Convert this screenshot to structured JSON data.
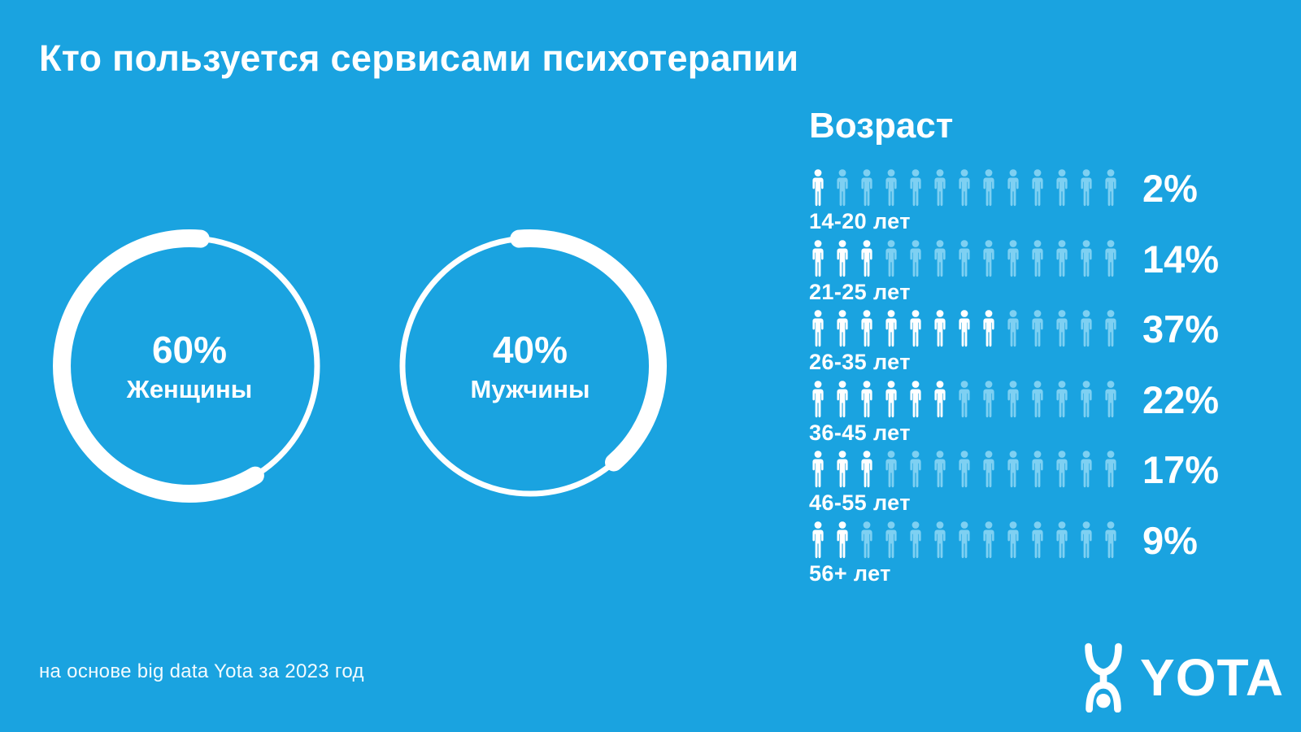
{
  "page": {
    "title": "Кто пользуется сервисами психотерапии",
    "footnote": "на основе big data Yota за 2023 год",
    "brand": "YOTA"
  },
  "colors": {
    "background": "#1aa3e0",
    "icon_dim": "#7ed0f2",
    "foreground": "#ffffff"
  },
  "icons": {
    "person": "person-pictogram-icon",
    "logo": "yota-figure-icon"
  },
  "gender": {
    "items": [
      {
        "value": "60%",
        "label": "Женщины",
        "percent": 60
      },
      {
        "value": "40%",
        "label": "Мужчины",
        "percent": 40
      }
    ]
  },
  "age": {
    "heading": "Возраст",
    "icons_per_row": 13,
    "rows": [
      {
        "label": "14-20 лет",
        "value": "2%",
        "percent": 2,
        "highlighted": 1
      },
      {
        "label": "21-25 лет",
        "value": "14%",
        "percent": 14,
        "highlighted": 3
      },
      {
        "label": "26-35 лет",
        "value": "37%",
        "percent": 37,
        "highlighted": 8
      },
      {
        "label": "36-45 лет",
        "value": "22%",
        "percent": 22,
        "highlighted": 6
      },
      {
        "label": "46-55 лет",
        "value": "17%",
        "percent": 17,
        "highlighted": 3
      },
      {
        "label": "56+ лет",
        "value": "9%",
        "percent": 9,
        "highlighted": 2
      }
    ]
  },
  "chart_data": [
    {
      "type": "pie",
      "title": "Кто пользуется сервисами психотерапии",
      "categories": [
        "Женщины",
        "Мужчины"
      ],
      "values": [
        60,
        40
      ],
      "unit": "%",
      "style": "two separate donut rings, thick white arc = share, thin white arc = remainder"
    },
    {
      "type": "bar",
      "title": "Возраст",
      "categories": [
        "14-20 лет",
        "21-25 лет",
        "26-35 лет",
        "36-45 лет",
        "46-55 лет",
        "56+ лет"
      ],
      "values": [
        2,
        14,
        37,
        22,
        17,
        9
      ],
      "unit": "%",
      "style": "pictogram rows, 13 person icons per row",
      "icons_highlighted": [
        1,
        3,
        8,
        6,
        3,
        2
      ],
      "legend_position": "none",
      "grid": false
    }
  ]
}
